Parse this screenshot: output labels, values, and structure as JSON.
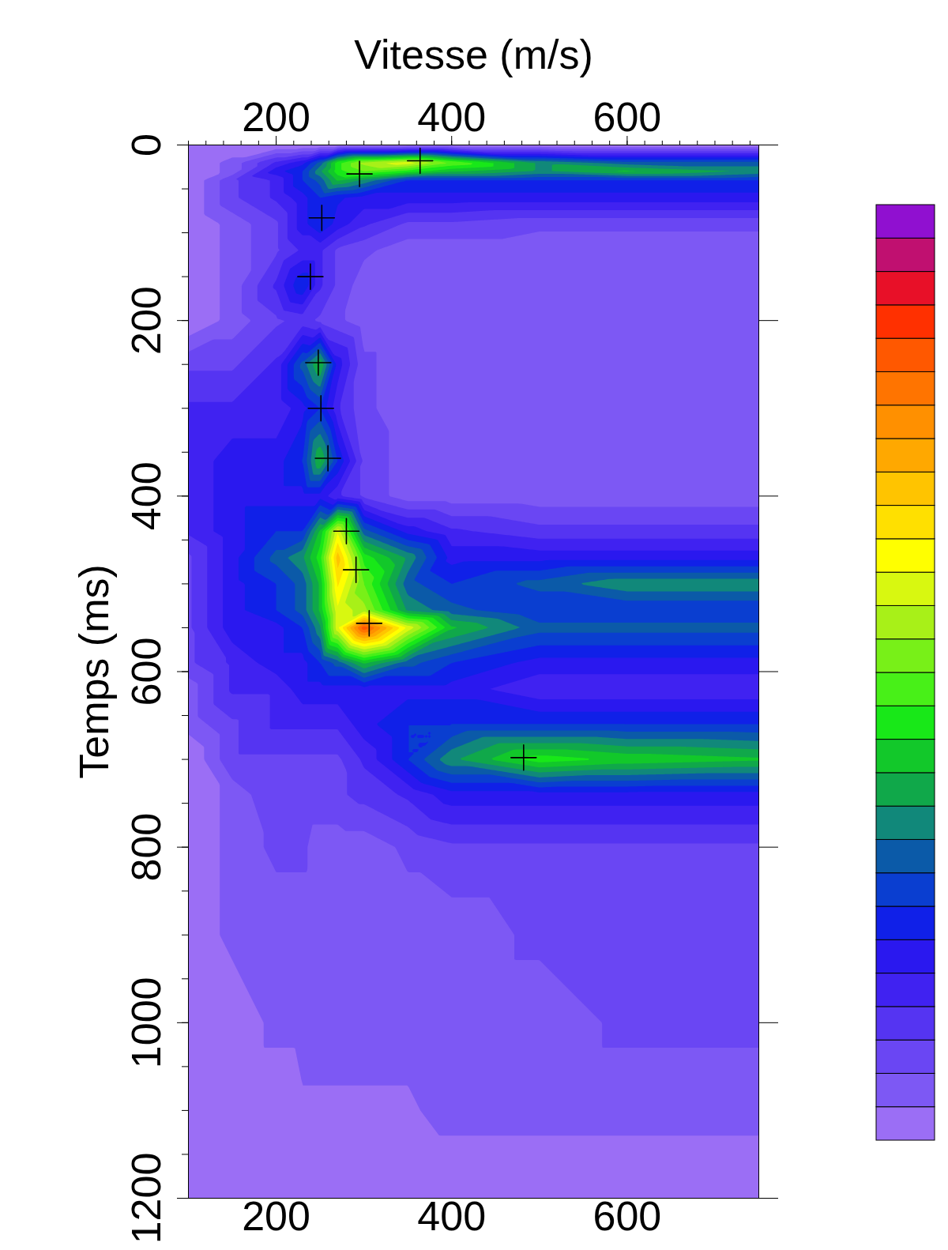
{
  "chart_data": {
    "type": "contour",
    "x_label": "Vitesse (m/s)",
    "y_label": "Temps (ms)",
    "xlim": [
      100,
      750
    ],
    "ylim": [
      0,
      1200
    ],
    "xticks": [
      200,
      400,
      600
    ],
    "yticks": [
      0,
      200,
      400,
      600,
      800,
      1000,
      1200
    ],
    "semblance": {
      "velocities": [
        100,
        150,
        200,
        230,
        250,
        270,
        300,
        350,
        400,
        500,
        600,
        750
      ],
      "times": [
        0,
        20,
        30,
        40,
        60,
        90,
        120,
        160,
        200,
        250,
        300,
        360,
        400,
        440,
        470,
        500,
        530,
        550,
        590,
        620,
        660,
        700,
        740,
        800,
        900,
        1000,
        1100,
        1200
      ],
      "values": [
        [
          0,
          0,
          0,
          0,
          0,
          0,
          0,
          0,
          0,
          0,
          0,
          0
        ],
        [
          0,
          0.05,
          0.15,
          0.2,
          0.3,
          0.45,
          0.55,
          0.6,
          0.5,
          0.35,
          0.3,
          0.3
        ],
        [
          0,
          0.05,
          0.2,
          0.25,
          0.35,
          0.45,
          0.5,
          0.45,
          0.4,
          0.35,
          0.4,
          0.35
        ],
        [
          0,
          0.1,
          0.15,
          0.25,
          0.3,
          0.4,
          0.35,
          0.25,
          0.25,
          0.25,
          0.25,
          0.25
        ],
        [
          0,
          0.1,
          0.15,
          0.2,
          0.25,
          0.22,
          0.2,
          0.2,
          0.2,
          0.2,
          0.2,
          0.2
        ],
        [
          0,
          0.05,
          0.1,
          0.2,
          0.25,
          0.2,
          0.15,
          0.1,
          0.1,
          0.08,
          0.08,
          0.08
        ],
        [
          0,
          0.05,
          0.1,
          0.15,
          0.15,
          0.1,
          0.08,
          0.05,
          0.05,
          0.05,
          0.05,
          0.05
        ],
        [
          0,
          0.05,
          0.15,
          0.25,
          0.15,
          0.1,
          0.05,
          0.05,
          0.05,
          0.05,
          0.05,
          0.05
        ],
        [
          0,
          0.05,
          0.1,
          0.12,
          0.1,
          0.08,
          0.05,
          0.05,
          0.05,
          0.05,
          0.05,
          0.05
        ],
        [
          0.1,
          0.1,
          0.15,
          0.3,
          0.4,
          0.2,
          0.08,
          0.05,
          0.05,
          0.05,
          0.05,
          0.05
        ],
        [
          0.15,
          0.15,
          0.15,
          0.2,
          0.25,
          0.15,
          0.08,
          0.05,
          0.05,
          0.05,
          0.05,
          0.05
        ],
        [
          0.15,
          0.2,
          0.2,
          0.25,
          0.4,
          0.25,
          0.1,
          0.05,
          0.05,
          0.05,
          0.05,
          0.05
        ],
        [
          0.15,
          0.2,
          0.2,
          0.2,
          0.2,
          0.15,
          0.1,
          0.05,
          0.05,
          0.05,
          0.05,
          0.05
        ],
        [
          0.15,
          0.2,
          0.25,
          0.25,
          0.4,
          0.6,
          0.3,
          0.2,
          0.15,
          0.12,
          0.12,
          0.12
        ],
        [
          0.1,
          0.2,
          0.3,
          0.35,
          0.45,
          0.7,
          0.45,
          0.35,
          0.2,
          0.2,
          0.2,
          0.2
        ],
        [
          0.1,
          0.2,
          0.25,
          0.3,
          0.4,
          0.65,
          0.5,
          0.3,
          0.25,
          0.3,
          0.35,
          0.35
        ],
        [
          0.1,
          0.2,
          0.25,
          0.3,
          0.4,
          0.6,
          0.55,
          0.35,
          0.3,
          0.25,
          0.25,
          0.25
        ],
        [
          0.1,
          0.2,
          0.2,
          0.25,
          0.35,
          0.6,
          0.85,
          0.6,
          0.4,
          0.3,
          0.3,
          0.3
        ],
        [
          0.1,
          0.15,
          0.2,
          0.2,
          0.25,
          0.3,
          0.4,
          0.3,
          0.25,
          0.2,
          0.2,
          0.2
        ],
        [
          0.05,
          0.15,
          0.15,
          0.2,
          0.2,
          0.2,
          0.2,
          0.2,
          0.2,
          0.15,
          0.15,
          0.15
        ],
        [
          0.05,
          0.1,
          0.15,
          0.15,
          0.15,
          0.15,
          0.2,
          0.25,
          0.25,
          0.25,
          0.25,
          0.25
        ],
        [
          0,
          0.1,
          0.1,
          0.1,
          0.1,
          0.1,
          0.15,
          0.25,
          0.35,
          0.45,
          0.42,
          0.4
        ],
        [
          0,
          0.05,
          0.1,
          0.1,
          0.1,
          0.1,
          0.12,
          0.15,
          0.2,
          0.2,
          0.2,
          0.2
        ],
        [
          0,
          0.05,
          0.08,
          0.08,
          0.05,
          0.05,
          0.05,
          0.08,
          0.1,
          0.1,
          0.1,
          0.1
        ],
        [
          0,
          0.05,
          0.05,
          0.05,
          0.05,
          0.05,
          0.05,
          0.05,
          0.05,
          0.08,
          0.08,
          0.08
        ],
        [
          0,
          0,
          0.05,
          0.05,
          0.05,
          0.05,
          0.05,
          0.05,
          0.05,
          0.05,
          0.08,
          0.08
        ],
        [
          0,
          0,
          0,
          0.03,
          0.03,
          0.03,
          0.03,
          0.03,
          0.05,
          0.05,
          0.05,
          0.05
        ],
        [
          0,
          0,
          0,
          0,
          0,
          0,
          0,
          0,
          0,
          0,
          0,
          0
        ]
      ]
    },
    "picks": {
      "velocities": [
        364,
        295,
        252,
        239,
        248,
        251,
        259,
        280,
        291,
        306,
        482
      ],
      "times": [
        18,
        33,
        83,
        150,
        248,
        300,
        357,
        440,
        484,
        545,
        698
      ]
    },
    "marker": "plus",
    "colors": [
      "#9b6ef5",
      "#7d58f4",
      "#6a46f3",
      "#5534f2",
      "#4022f1",
      "#2a18ef",
      "#1020e8",
      "#0a3ed0",
      "#0b5aa8",
      "#11887a",
      "#10a84a",
      "#12c82a",
      "#18e818",
      "#48f018",
      "#78f018",
      "#a8f018",
      "#d8f810",
      "#ffff00",
      "#ffe000",
      "#ffc400",
      "#ffa800",
      "#ff9000",
      "#ff7400",
      "#ff5800",
      "#ff3000",
      "#e81028",
      "#c01070",
      "#9010d0"
    ],
    "color_bar": {
      "range": [
        0,
        1
      ]
    }
  }
}
